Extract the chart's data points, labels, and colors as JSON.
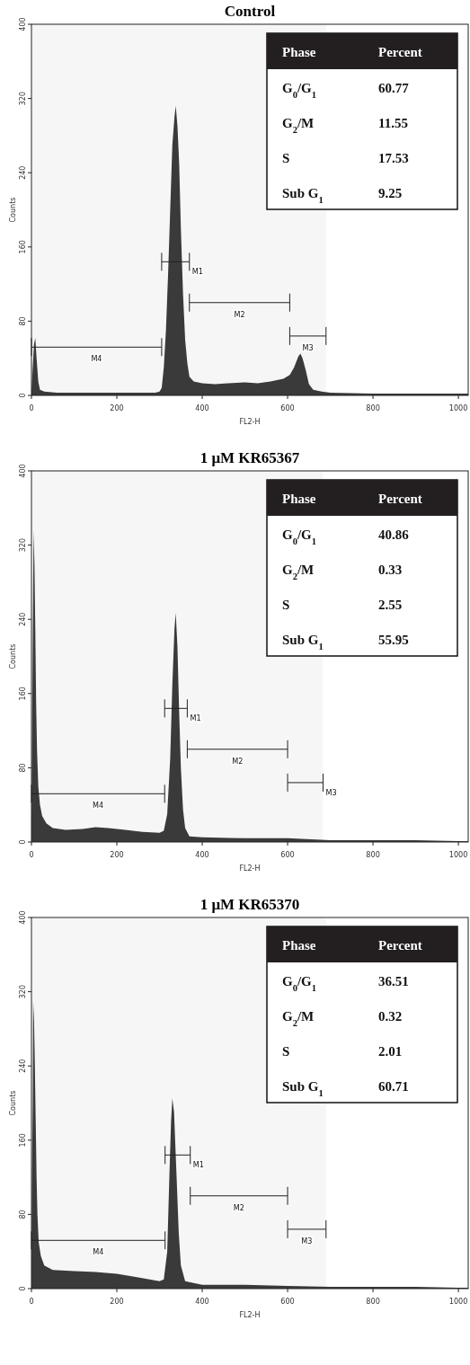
{
  "chart_data": [
    {
      "type": "area",
      "title": "Control",
      "xlabel": "FL2-H",
      "ylabel": "Counts",
      "xlim": [
        0,
        1023
      ],
      "ylim": [
        0,
        400
      ],
      "xticks": [
        0,
        200,
        400,
        600,
        800,
        1000
      ],
      "yticks": [
        0,
        80,
        160,
        240,
        320,
        400
      ],
      "grid": false,
      "series": [
        {
          "color": "#3a3a3a",
          "x": [
            0,
            3,
            6,
            9,
            12,
            16,
            20,
            30,
            60,
            100,
            150,
            200,
            250,
            290,
            300,
            305,
            310,
            315,
            320,
            325,
            330,
            335,
            338,
            342,
            346,
            350,
            355,
            360,
            365,
            370,
            380,
            400,
            430,
            460,
            500,
            530,
            560,
            590,
            605,
            615,
            625,
            630,
            635,
            642,
            650,
            660,
            680,
            700,
            800,
            900,
            1000,
            1023
          ],
          "values": [
            5,
            30,
            55,
            62,
            40,
            15,
            6,
            4,
            3,
            3,
            3,
            3,
            3,
            3,
            4,
            8,
            30,
            70,
            130,
            200,
            270,
            300,
            312,
            290,
            250,
            180,
            110,
            60,
            35,
            20,
            15,
            13,
            12,
            13,
            14,
            13,
            15,
            18,
            22,
            30,
            42,
            45,
            40,
            28,
            12,
            6,
            4,
            3,
            2,
            2,
            2,
            2
          ]
        }
      ],
      "bands": [
        {
          "axis": "x",
          "from": 305,
          "to": 370,
          "label": "M1"
        },
        {
          "axis": "x",
          "from": 370,
          "to": 605,
          "label": "M2"
        },
        {
          "axis": "x",
          "from": 605,
          "to": 690,
          "label": "M3"
        },
        {
          "axis": "x",
          "from": 0,
          "to": 305,
          "label": "M4"
        }
      ],
      "annotations": [
        "Phase",
        "Percent",
        "G$_{0}$/G$_{1}$",
        "60.77",
        "G$_{2}$/M",
        "11.55",
        "S",
        "17.53",
        "Sub G$_{1}$",
        "9.25"
      ]
    },
    {
      "type": "area",
      "title": "1 μM KR65367",
      "xlabel": "FL2-H",
      "ylabel": "Counts",
      "xlim": [
        0,
        1023
      ],
      "ylim": [
        0,
        400
      ],
      "xticks": [
        0,
        200,
        400,
        600,
        800,
        1000
      ],
      "yticks": [
        0,
        80,
        160,
        240,
        320,
        400
      ],
      "grid": false,
      "series": [
        {
          "color": "#3a3a3a",
          "x": [
            0,
            2,
            4,
            5,
            7,
            9,
            11,
            13,
            16,
            20,
            25,
            35,
            50,
            80,
            120,
            150,
            180,
            220,
            260,
            300,
            310,
            318,
            325,
            330,
            335,
            338,
            342,
            346,
            350,
            355,
            360,
            370,
            400,
            500,
            600,
            700,
            800,
            900,
            1000,
            1023
          ],
          "values": [
            20,
            150,
            280,
            336,
            300,
            230,
            150,
            100,
            60,
            40,
            28,
            20,
            15,
            13,
            14,
            16,
            15,
            13,
            11,
            10,
            12,
            30,
            90,
            170,
            230,
            247,
            210,
            140,
            80,
            35,
            15,
            6,
            5,
            4,
            4,
            2,
            2,
            2,
            1,
            1
          ]
        }
      ],
      "bands": [
        {
          "axis": "x",
          "from": 312,
          "to": 365,
          "label": "M1"
        },
        {
          "axis": "x",
          "from": 365,
          "to": 600,
          "label": "M2"
        },
        {
          "axis": "x",
          "from": 600,
          "to": 683,
          "label": "M3"
        },
        {
          "axis": "x",
          "from": 0,
          "to": 312,
          "label": "M4"
        }
      ],
      "annotations": [
        "Phase",
        "Percent",
        "G$_{0}$/G$_{1}$",
        "40.86",
        "G$_{2}$/M",
        "0.33",
        "S",
        "2.55",
        "Sub G$_{1}$",
        "55.95"
      ]
    },
    {
      "type": "area",
      "title": "1 μM KR65370",
      "xlabel": "FL2-H",
      "ylabel": "Counts",
      "xlim": [
        0,
        1023
      ],
      "ylim": [
        0,
        400
      ],
      "xticks": [
        0,
        200,
        400,
        600,
        800,
        1000
      ],
      "yticks": [
        0,
        80,
        160,
        240,
        320,
        400
      ],
      "grid": false,
      "series": [
        {
          "color": "#3a3a3a",
          "x": [
            0,
            1,
            3,
            4,
            6,
            8,
            10,
            12,
            14,
            17,
            22,
            30,
            50,
            100,
            150,
            200,
            250,
            300,
            310,
            318,
            323,
            327,
            330,
            334,
            340,
            345,
            350,
            360,
            400,
            500,
            600,
            700,
            800,
            900,
            1000,
            1023
          ],
          "values": [
            20,
            110,
            200,
            310,
            290,
            240,
            180,
            120,
            80,
            50,
            35,
            25,
            20,
            19,
            18,
            16,
            12,
            8,
            10,
            40,
            120,
            180,
            205,
            190,
            120,
            60,
            25,
            8,
            4,
            4,
            3,
            2,
            2,
            2,
            1,
            1
          ]
        }
      ],
      "bands": [
        {
          "axis": "x",
          "from": 313,
          "to": 372,
          "label": "M1"
        },
        {
          "axis": "x",
          "from": 372,
          "to": 600,
          "label": "M2"
        },
        {
          "axis": "x",
          "from": 600,
          "to": 690,
          "label": "M3"
        },
        {
          "axis": "x",
          "from": 0,
          "to": 313,
          "label": "M4"
        }
      ],
      "annotations": [
        "Phase",
        "Percent",
        "G$_{0}$/G$_{1}$",
        "36.51",
        "G$_{2}$/M",
        "0.32",
        "S",
        "2.01",
        "Sub G$_{1}$",
        "60.71"
      ]
    }
  ]
}
